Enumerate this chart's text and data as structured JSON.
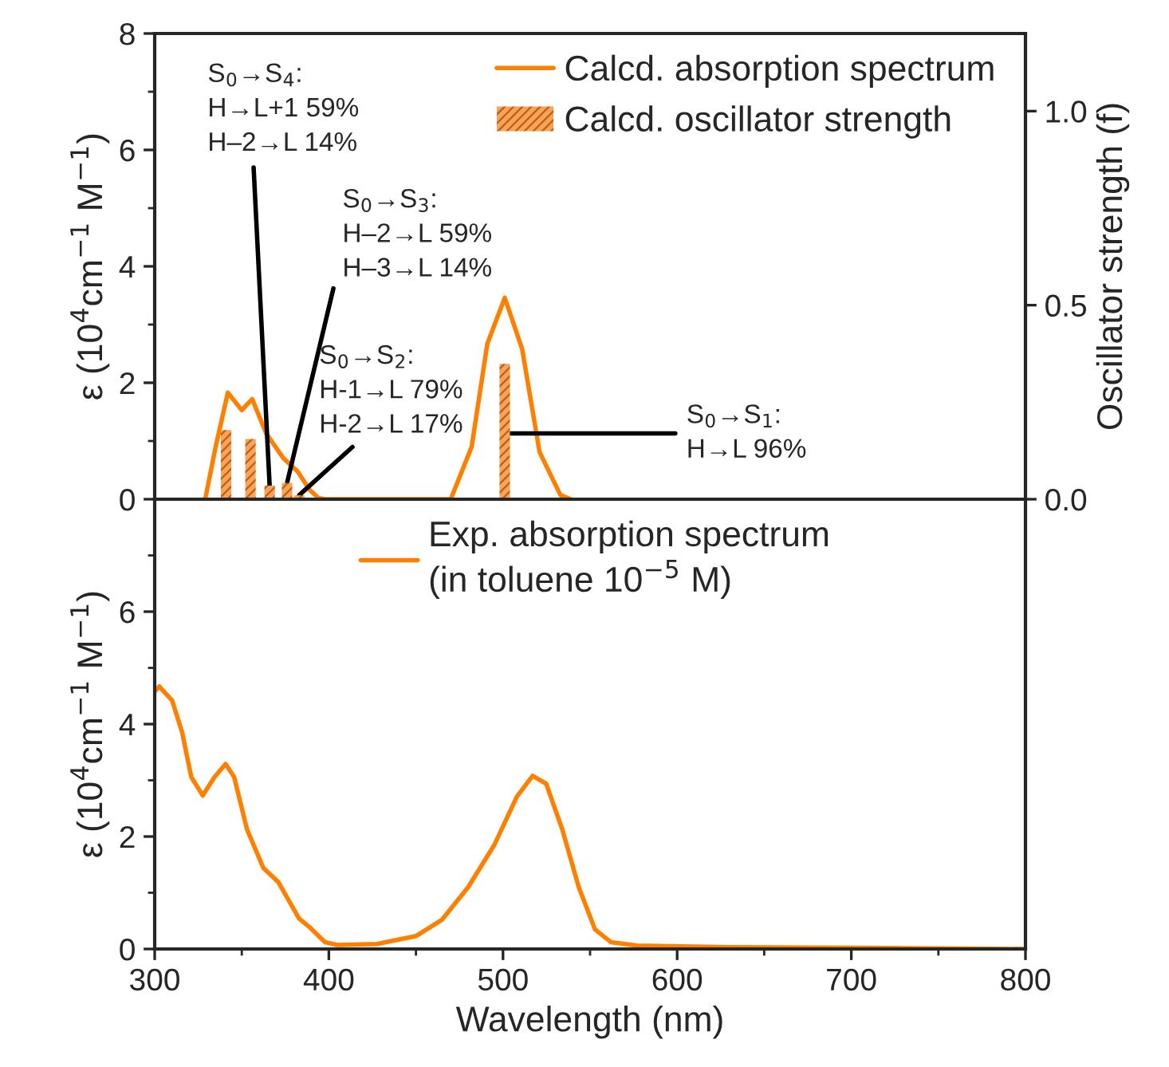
{
  "chart_data": [
    {
      "type": "line",
      "ylabel": "ε (10$^{4}$cm$^{−1}$ M$^{−1}$)",
      "y2label": "Oscillator strength (f)",
      "xlim": [
        300,
        800
      ],
      "xticks": [
        300,
        400,
        500,
        600,
        700,
        800
      ],
      "ylim": [
        0,
        8
      ],
      "yticks": [
        0,
        2,
        4,
        6,
        8
      ],
      "y2lim": [
        0,
        1.2
      ],
      "y2ticks": [
        {
          "value": 0,
          "label": "0.0"
        },
        {
          "value": 0.5,
          "label": "0.5"
        },
        {
          "value": 1,
          "label": "1.0"
        }
      ],
      "tick_labels": "y",
      "legend": "top right",
      "grid": false,
      "series": [
        {
          "name": "Calcd. absorption spectrum",
          "color": "#ff8000",
          "x": [
            329,
            335,
            342,
            350,
            356,
            364,
            374,
            382,
            389,
            394,
            398,
            470,
            482,
            491,
            501,
            511,
            521,
            533,
            539
          ],
          "values": [
            0,
            0.9,
            1.83,
            1.53,
            1.72,
            1.13,
            0.7,
            0.48,
            0.16,
            0.02,
            0,
            0,
            0.9,
            2.67,
            3.46,
            2.58,
            0.81,
            0.07,
            0
          ]
        },
        {
          "name": "Calcd. oscillator strength",
          "type": "bar",
          "axis": "y2",
          "color": "#f5a55a",
          "x": [
            341,
            355,
            366,
            376,
            383,
            501
          ],
          "values": [
            0.178,
            0.155,
            0.035,
            0.042,
            0.01,
            0.349
          ]
        }
      ],
      "annotations": [
        {
          "text": "S$_{0}$→S$_{4}$:\nH→L+1 59%\nH–2→L 14%",
          "x": 366,
          "y": 0.23
        },
        {
          "text": "S$_{0}$→S$_{3}$:\nH–2→L 59%\nH–3→L 14%",
          "x": 376,
          "y": 0.28
        },
        {
          "text": "S$_{0}$→S$_{2}$:\nH-1→L 79%\nH-2→L 17%",
          "x": 383,
          "y": 0.07
        },
        {
          "text": "S$_{0}$→S$_{1}$:\nH→L 96%",
          "x": 501,
          "y": 1.13
        }
      ]
    },
    {
      "type": "line",
      "ylabel": "ε (10$^{4}$cm$^{−1}$ M$^{−1}$)",
      "xlabel": "Wavelength (nm)",
      "xlim": [
        300,
        800
      ],
      "xticks": [
        300,
        400,
        500,
        600,
        700,
        800
      ],
      "ylim": [
        0,
        8
      ],
      "yticks": [
        0,
        2,
        4,
        6
      ],
      "legend": "top right",
      "grid": false,
      "series": [
        {
          "name": "Exp. absorption spectrum\n(in toluene 10$^{−5}$ M)",
          "color": "#ff8000",
          "x": [
            300,
            302.6,
            310,
            315.7,
            321,
            327.6,
            334.4,
            340.7,
            345.6,
            353,
            362.4,
            371,
            382.9,
            388.5,
            397.8,
            405,
            427.7,
            450,
            465,
            480,
            495,
            508,
            517,
            524.8,
            534,
            543.5,
            552.8,
            562,
            577,
            629,
            704,
            800
          ],
          "values": [
            4.58,
            4.67,
            4.42,
            3.86,
            3.06,
            2.73,
            3.06,
            3.29,
            3.06,
            2.13,
            1.44,
            1.19,
            0.54,
            0.4,
            0.12,
            0.07,
            0.09,
            0.23,
            0.52,
            1.1,
            1.85,
            2.71,
            3.08,
            2.94,
            2.13,
            1.1,
            0.35,
            0.12,
            0.06,
            0.03,
            0.02,
            0
          ]
        }
      ]
    }
  ]
}
